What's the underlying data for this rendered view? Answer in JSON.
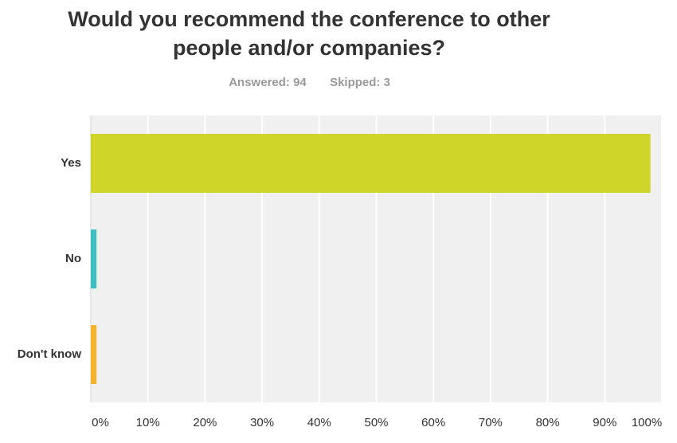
{
  "chart_data": {
    "type": "hbar",
    "title": "Would you recommend the conference to other people and/or companies?",
    "answered": "Answered: 94",
    "skipped": "Skipped: 3",
    "categories": [
      "Yes",
      "No",
      "Don't know"
    ],
    "values": [
      98,
      1,
      1
    ],
    "colors": [
      "#d0d52a",
      "#3ebfc2",
      "#f5b22d"
    ],
    "xlim": [
      0,
      100
    ],
    "xticks": [
      {
        "value": 0,
        "label": "0%"
      },
      {
        "value": 10,
        "label": "10%"
      },
      {
        "value": 20,
        "label": "20%"
      },
      {
        "value": 30,
        "label": "30%"
      },
      {
        "value": 40,
        "label": "40%"
      },
      {
        "value": 50,
        "label": "50%"
      },
      {
        "value": 60,
        "label": "60%"
      },
      {
        "value": 70,
        "label": "70%"
      },
      {
        "value": 80,
        "label": "80%"
      },
      {
        "value": 90,
        "label": "90%"
      },
      {
        "value": 100,
        "label": "100%"
      }
    ],
    "grid": true
  }
}
